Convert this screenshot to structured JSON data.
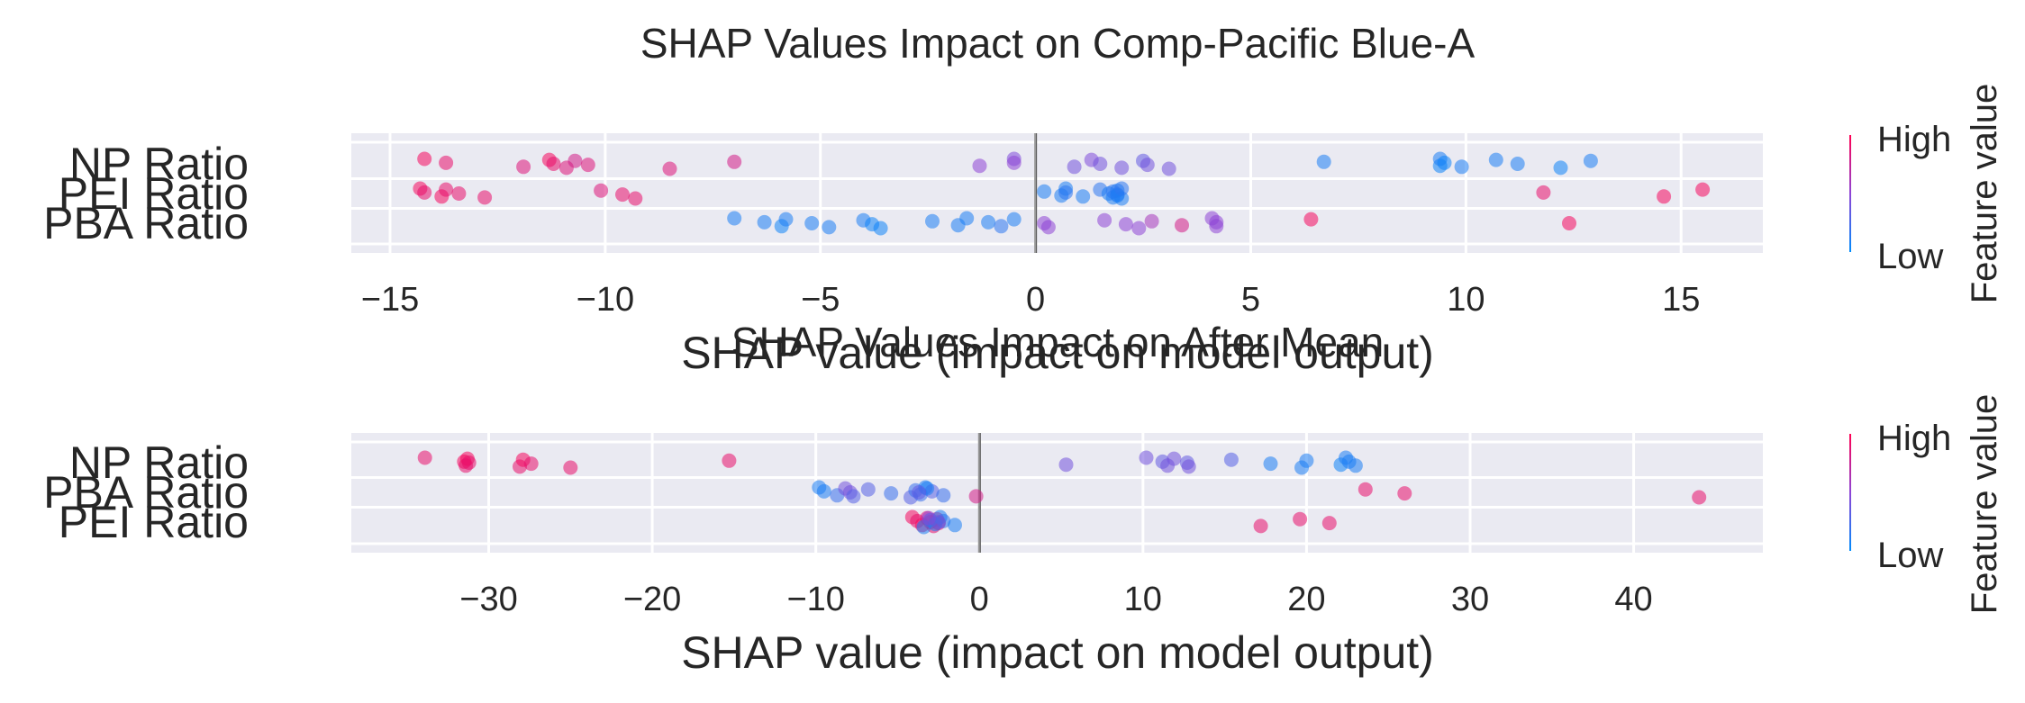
{
  "chart_data": [
    {
      "type": "scatter",
      "title": "SHAP Values Impact on Comp-Pacific Blue-A",
      "xlabel": "SHAP value (impact on model output)",
      "xlim": [
        -15.9,
        16.9
      ],
      "xticks": [
        -15,
        -10,
        -5,
        0,
        5,
        10,
        15
      ],
      "xtick_labels": [
        "−15",
        "−10",
        "−5",
        "0",
        "5",
        "10",
        "15"
      ],
      "grid": true,
      "features": [
        "NP Ratio",
        "PEI Ratio",
        "PBA Ratio"
      ],
      "colorbar": {
        "label": "Feature value",
        "high": "High",
        "low": "Low",
        "high_color": "#ff0052",
        "low_color": "#008bfb"
      },
      "series": [
        {
          "feature": "NP Ratio",
          "points": [
            [
              -14.2,
              0.95
            ],
            [
              -13.7,
              0.9
            ],
            [
              -11.9,
              0.85
            ],
            [
              -11.3,
              0.95
            ],
            [
              -11.2,
              0.9
            ],
            [
              -10.9,
              0.85
            ],
            [
              -10.7,
              0.8
            ],
            [
              -10.4,
              0.85
            ],
            [
              -8.5,
              0.85
            ],
            [
              -7,
              0.8
            ],
            [
              -1.3,
              0.5
            ],
            [
              -0.5,
              0.45
            ],
            [
              -0.5,
              0.5
            ],
            [
              0.9,
              0.4
            ],
            [
              1.3,
              0.45
            ],
            [
              1.5,
              0.4
            ],
            [
              2,
              0.4
            ],
            [
              2.5,
              0.35
            ],
            [
              2.6,
              0.4
            ],
            [
              3.1,
              0.4
            ],
            [
              6.7,
              0.1
            ],
            [
              9.4,
              0.05
            ],
            [
              9.4,
              0.1
            ],
            [
              9.5,
              0.05
            ],
            [
              9.9,
              0.1
            ],
            [
              10.7,
              0.1
            ],
            [
              11.2,
              0.1
            ],
            [
              12.2,
              0.05
            ],
            [
              12.9,
              0.1
            ]
          ]
        },
        {
          "feature": "PEI Ratio",
          "points": [
            [
              -14.3,
              0.95
            ],
            [
              -14.2,
              0.9
            ],
            [
              -13.8,
              0.95
            ],
            [
              -13.7,
              0.9
            ],
            [
              -13.4,
              0.9
            ],
            [
              -12.8,
              0.9
            ],
            [
              -10.1,
              0.85
            ],
            [
              -9.6,
              0.9
            ],
            [
              -9.3,
              0.9
            ],
            [
              0.2,
              0.1
            ],
            [
              0.6,
              0.1
            ],
            [
              0.7,
              0.1
            ],
            [
              0.7,
              0.15
            ],
            [
              1.1,
              0.1
            ],
            [
              1.5,
              0.15
            ],
            [
              1.7,
              0.1
            ],
            [
              1.8,
              0.1
            ],
            [
              1.9,
              0.1
            ],
            [
              1.9,
              0.15
            ],
            [
              2,
              0.1
            ],
            [
              1.8,
              0.15
            ],
            [
              1.9,
              0.1
            ],
            [
              2,
              0.15
            ],
            [
              11.8,
              0.9
            ],
            [
              14.6,
              0.95
            ],
            [
              15.5,
              0.95
            ]
          ]
        },
        {
          "feature": "PBA Ratio",
          "points": [
            [
              -7,
              0.1
            ],
            [
              -6.3,
              0.1
            ],
            [
              -5.9,
              0.05
            ],
            [
              -5.8,
              0.1
            ],
            [
              -5.2,
              0.1
            ],
            [
              -4.8,
              0.1
            ],
            [
              -4,
              0.1
            ],
            [
              -3.8,
              0.05
            ],
            [
              -3.6,
              0.05
            ],
            [
              -2.4,
              0.1
            ],
            [
              -1.8,
              0.1
            ],
            [
              -1.6,
              0.1
            ],
            [
              -1.1,
              0.1
            ],
            [
              -0.8,
              0.15
            ],
            [
              -0.5,
              0.1
            ],
            [
              0.2,
              0.5
            ],
            [
              0.3,
              0.5
            ],
            [
              1.6,
              0.5
            ],
            [
              2.1,
              0.5
            ],
            [
              2.4,
              0.5
            ],
            [
              2.7,
              0.6
            ],
            [
              3.4,
              0.8
            ],
            [
              4.1,
              0.5
            ],
            [
              4.2,
              0.5
            ],
            [
              4.2,
              0.5
            ],
            [
              6.4,
              0.95
            ],
            [
              12.4,
              0.95
            ]
          ]
        }
      ]
    },
    {
      "type": "scatter",
      "title": "SHAP Values Impact on After Mean",
      "xlabel": "SHAP value (impact on model output)",
      "xlim": [
        -38.4,
        47.9
      ],
      "xticks": [
        -30,
        -20,
        -10,
        0,
        10,
        20,
        30,
        40
      ],
      "xtick_labels": [
        "−30",
        "−20",
        "−10",
        "0",
        "10",
        "20",
        "30",
        "40"
      ],
      "grid": true,
      "features": [
        "NP Ratio",
        "PBA Ratio",
        "PEI Ratio"
      ],
      "colorbar": {
        "label": "Feature value",
        "high": "High",
        "low": "Low",
        "high_color": "#ff0052",
        "low_color": "#008bfb"
      },
      "series": [
        {
          "feature": "NP Ratio",
          "points": [
            [
              -33.9,
              0.9
            ],
            [
              -31.5,
              0.95
            ],
            [
              -31.4,
              0.9
            ],
            [
              -31.3,
              0.95
            ],
            [
              -31.2,
              0.9
            ],
            [
              -28.1,
              0.9
            ],
            [
              -27.9,
              0.95
            ],
            [
              -27.4,
              0.9
            ],
            [
              -25,
              0.9
            ],
            [
              -15.3,
              0.9
            ],
            [
              5.3,
              0.4
            ],
            [
              10.2,
              0.4
            ],
            [
              11.2,
              0.35
            ],
            [
              11.5,
              0.4
            ],
            [
              11.9,
              0.4
            ],
            [
              12.7,
              0.35
            ],
            [
              12.8,
              0.4
            ],
            [
              15.4,
              0.3
            ],
            [
              17.8,
              0.1
            ],
            [
              19.7,
              0.1
            ],
            [
              20,
              0.1
            ],
            [
              22.1,
              0.05
            ],
            [
              22.4,
              0.1
            ],
            [
              22.6,
              0.1
            ],
            [
              23,
              0.1
            ]
          ]
        },
        {
          "feature": "PBA Ratio",
          "points": [
            [
              -9.8,
              0.1
            ],
            [
              -9.5,
              0.1
            ],
            [
              -8.7,
              0.2
            ],
            [
              -8.2,
              0.4
            ],
            [
              -7.9,
              0.4
            ],
            [
              -7.7,
              0.3
            ],
            [
              -6.8,
              0.3
            ],
            [
              -5.4,
              0.2
            ],
            [
              -4.2,
              0.3
            ],
            [
              -3.9,
              0.2
            ],
            [
              -3.6,
              0.2
            ],
            [
              -3.3,
              0.1
            ],
            [
              -2.9,
              0.3
            ],
            [
              -2.2,
              0.2
            ],
            [
              -3.2,
              0.1
            ],
            [
              -3.7,
              0.35
            ],
            [
              -0.2,
              0.8
            ],
            [
              23.6,
              0.9
            ],
            [
              26,
              0.9
            ],
            [
              44,
              0.9
            ]
          ]
        },
        {
          "feature": "PEI Ratio",
          "points": [
            [
              -4.1,
              0.95
            ],
            [
              -3.8,
              0.9
            ],
            [
              -3.5,
              0.95
            ],
            [
              -3.2,
              0.9
            ],
            [
              -3,
              0.95
            ],
            [
              -2.8,
              0.9
            ],
            [
              -2.6,
              0.9
            ],
            [
              -2.5,
              0.95
            ],
            [
              -3.4,
              0.1
            ],
            [
              -3,
              0.15
            ],
            [
              -2.7,
              0.1
            ],
            [
              -2.4,
              0.1
            ],
            [
              -2.2,
              0.15
            ],
            [
              -1.5,
              0.1
            ],
            [
              -3.1,
              0.5
            ],
            [
              -2.5,
              0.4
            ],
            [
              17.2,
              0.9
            ],
            [
              19.6,
              0.9
            ],
            [
              21.4,
              0.9
            ]
          ]
        }
      ]
    }
  ]
}
